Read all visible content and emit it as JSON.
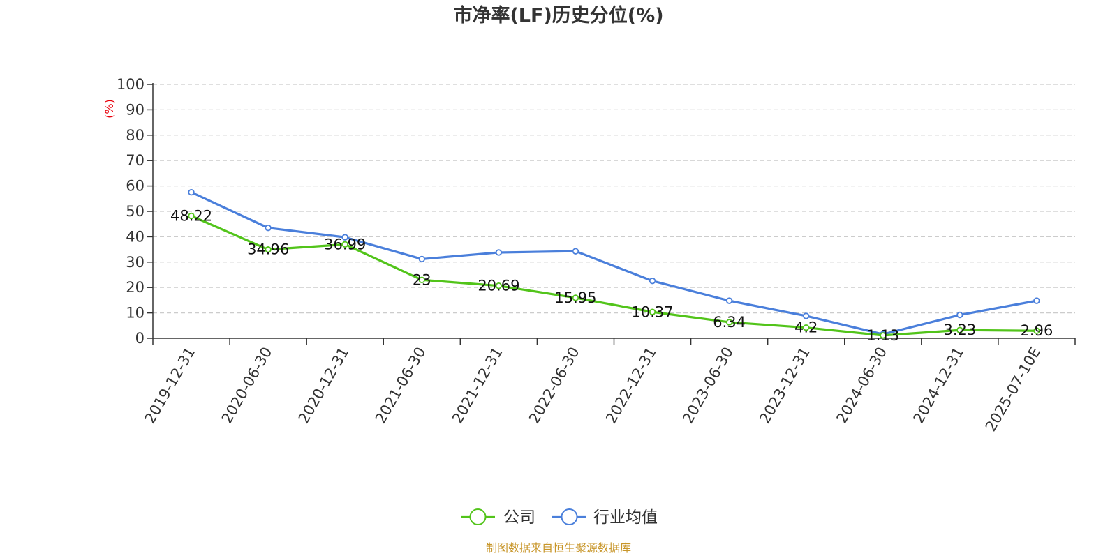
{
  "chart_data": {
    "type": "line",
    "title": "市净率(LF)历史分位(%)",
    "ylabel": "(%)",
    "xlabel": "",
    "ylim": [
      0,
      100
    ],
    "yticks": [
      0,
      10,
      20,
      30,
      40,
      50,
      60,
      70,
      80,
      90,
      100
    ],
    "grid": true,
    "categories": [
      "2019-12-31",
      "2020-06-30",
      "2020-12-31",
      "2021-06-30",
      "2021-12-31",
      "2022-06-30",
      "2022-12-31",
      "2023-06-30",
      "2023-12-31",
      "2024-06-30",
      "2024-12-31",
      "2025-07-10E"
    ],
    "series": [
      {
        "name": "公司",
        "color": "#52c41a",
        "values": [
          48.22,
          34.96,
          36.99,
          23,
          20.69,
          15.95,
          10.37,
          6.34,
          4.2,
          1.13,
          3.23,
          2.96
        ],
        "labels": [
          "48.22",
          "34.96",
          "36.99",
          "23",
          "20.69",
          "15.95",
          "10.37",
          "6.34",
          "4.2",
          "1.13",
          "3.23",
          "2.96"
        ]
      },
      {
        "name": "行业均值",
        "color": "#4a7fdb",
        "values": [
          57.5,
          43.5,
          39.8,
          31.2,
          33.8,
          34.3,
          22.6,
          14.8,
          8.8,
          1.6,
          9.2,
          14.8
        ]
      }
    ],
    "legend_position": "bottom-center",
    "source": "制图数据来自恒生聚源数据库"
  }
}
